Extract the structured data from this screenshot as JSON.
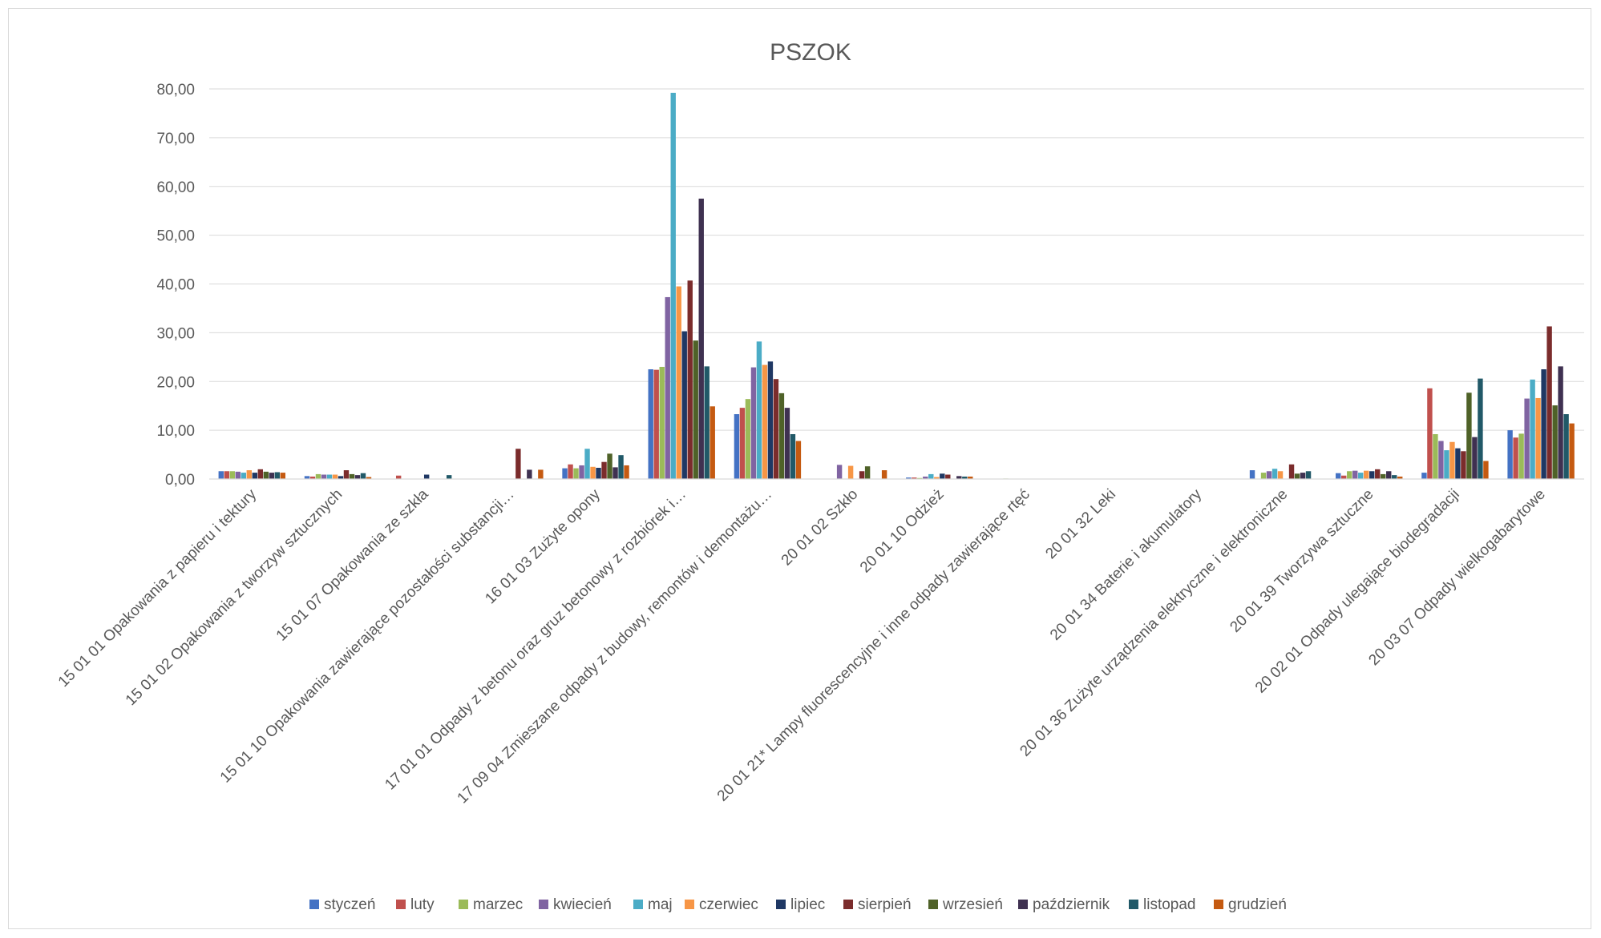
{
  "chart_data": {
    "type": "bar",
    "title": "PSZOK",
    "xlabel": "",
    "ylabel": "",
    "ylim": [
      0,
      80
    ],
    "yticks": [
      "0,00",
      "10,00",
      "20,00",
      "30,00",
      "40,00",
      "50,00",
      "60,00",
      "70,00",
      "80,00"
    ],
    "grid": true,
    "legend_position": "bottom",
    "categories": [
      "15 01 01 Opakowania z papieru i tektury",
      "15 01 02 Opakowania z tworzyw sztucznych",
      "15 01 07 Opakowania ze szkła",
      "15 01 10 Opakowania zawierające pozostałości substancji…",
      "16 01 03 Zużyte opony",
      "17 01 01  Odpady z betonu oraz gruz betonowy z rozbiórek i…",
      "17 09 04 Zmieszane odpady z budowy, remontów i demontażu…",
      "20 01 02 Szkło",
      "20 01 10 Odzież",
      "20 01 21*     Lampy fluorescencyjne i inne odpady zawierające rtęć",
      "20 01 32 Leki",
      "20 01 34 Baterie i akumulatory",
      "20 01 36  Zużyte urządzenia elektryczne i elektroniczne",
      "20 01 39 Tworzywa sztuczne",
      "20 02 01 Odpady ulegające biodegradacji",
      "20 03 07          Odpady wielkogabarytowe"
    ],
    "series": [
      {
        "name": "styczeń",
        "color": "#4472C4",
        "values": [
          1.6,
          0.6,
          0,
          0,
          2.2,
          22.5,
          13.3,
          0,
          0.3,
          0,
          0,
          0,
          1.8,
          1.2,
          1.3,
          10.0
        ]
      },
      {
        "name": "luty",
        "color": "#C0504D",
        "values": [
          1.6,
          0.5,
          0.7,
          0,
          3.0,
          22.4,
          14.6,
          0,
          0.3,
          0,
          0,
          0,
          0,
          0.7,
          18.6,
          8.5
        ]
      },
      {
        "name": "marzec",
        "color": "#9BBB59",
        "values": [
          1.6,
          1.0,
          0,
          0,
          2.2,
          23.0,
          16.4,
          0,
          0.2,
          0.1,
          0,
          0,
          1.3,
          1.6,
          9.2,
          9.3
        ]
      },
      {
        "name": "kwiecień",
        "color": "#8064A2",
        "values": [
          1.5,
          0.9,
          0,
          0,
          2.8,
          37.3,
          22.9,
          2.9,
          0.5,
          0,
          0,
          0,
          1.6,
          1.7,
          7.8,
          16.5
        ]
      },
      {
        "name": "maj",
        "color": "#4BACC6",
        "values": [
          1.3,
          0.9,
          0,
          0,
          6.2,
          79.2,
          28.2,
          0,
          1.0,
          0,
          0,
          0,
          2.1,
          1.3,
          5.9,
          20.4
        ]
      },
      {
        "name": "czerwiec",
        "color": "#F79646",
        "values": [
          1.8,
          0.9,
          0,
          0,
          2.5,
          39.5,
          23.4,
          2.7,
          0.4,
          0,
          0,
          0,
          1.6,
          1.7,
          7.6,
          16.6
        ]
      },
      {
        "name": "lipiec",
        "color": "#1F3864",
        "values": [
          1.3,
          0.6,
          0.9,
          0,
          2.3,
          30.3,
          24.1,
          0,
          1.1,
          0,
          0,
          0,
          0,
          1.6,
          6.3,
          22.5
        ]
      },
      {
        "name": "sierpień",
        "color": "#7B2C2C",
        "values": [
          2.0,
          1.8,
          0,
          6.2,
          3.5,
          40.7,
          20.5,
          1.6,
          0.9,
          0,
          0,
          0,
          3.0,
          2.0,
          5.7,
          31.3
        ]
      },
      {
        "name": "wrzesień",
        "color": "#4F6228",
        "values": [
          1.5,
          1.0,
          0,
          0,
          5.2,
          28.4,
          17.6,
          2.6,
          0,
          0,
          0,
          0,
          1.1,
          1.0,
          17.7,
          15.1
        ]
      },
      {
        "name": "październik",
        "color": "#3F3151",
        "values": [
          1.3,
          0.8,
          0,
          1.9,
          2.4,
          57.5,
          14.6,
          0,
          0.6,
          0,
          0,
          0,
          1.3,
          1.6,
          8.6,
          23.1
        ]
      },
      {
        "name": "listopad",
        "color": "#215968",
        "values": [
          1.4,
          1.2,
          0.8,
          0,
          4.9,
          23.1,
          9.2,
          0,
          0.5,
          0,
          0,
          0,
          1.6,
          0.8,
          20.6,
          13.3
        ]
      },
      {
        "name": "grudzień",
        "color": "#C55A11",
        "values": [
          1.3,
          0.4,
          0,
          1.9,
          2.8,
          14.9,
          7.8,
          1.8,
          0.5,
          0,
          0,
          0,
          0,
          0.5,
          3.7,
          11.4
        ]
      }
    ]
  }
}
